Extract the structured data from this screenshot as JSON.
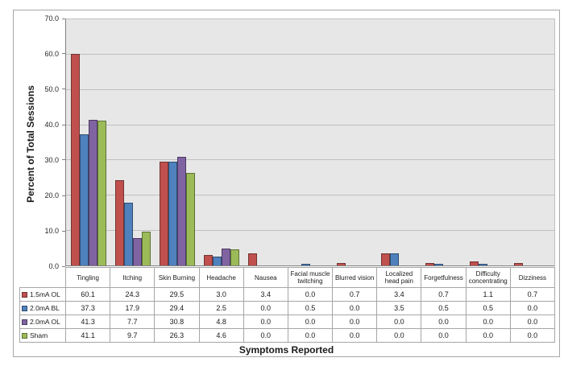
{
  "chart_data": {
    "type": "bar",
    "title": "",
    "xlabel": "Symptoms Reported",
    "ylabel": "Percent of Total Sessions",
    "ylim": [
      0,
      70
    ],
    "ytick_step": 10,
    "ytick_format_decimals": 1,
    "grid": true,
    "legend_position": "table-left",
    "categories": [
      "Tingling",
      "Itching",
      "Skin Burning",
      "Headache",
      "Nausea",
      "Facial muscle twitching",
      "Blurred vision",
      "Localized head pain",
      "Forgetfulness",
      "Difficulty concentrating",
      "Dizziness"
    ],
    "series": [
      {
        "name": "1.5mA OL",
        "color": "#C0504D",
        "border_color": "#703432",
        "values": [
          60.1,
          24.3,
          29.5,
          3.0,
          3.4,
          0.0,
          0.7,
          3.4,
          0.7,
          1.1,
          0.7
        ]
      },
      {
        "name": "2.0mA BL",
        "color": "#4F81BD",
        "border_color": "#2E4D70",
        "values": [
          37.3,
          17.9,
          29.4,
          2.5,
          0.0,
          0.5,
          0.0,
          3.5,
          0.5,
          0.5,
          0.0
        ]
      },
      {
        "name": "2.0mA OL",
        "color": "#8064A2",
        "border_color": "#4A3A61",
        "values": [
          41.3,
          7.7,
          30.8,
          4.8,
          0.0,
          0.0,
          0.0,
          0.0,
          0.0,
          0.0,
          0.0
        ]
      },
      {
        "name": "Sham",
        "color": "#9BBB59",
        "border_color": "#5E7233",
        "values": [
          41.1,
          9.7,
          26.3,
          4.6,
          0.0,
          0.0,
          0.0,
          0.0,
          0.0,
          0.0,
          0.0
        ]
      }
    ],
    "style_colors": {
      "plot_background": "#E7E7E7",
      "gridline": "#BFBFBF",
      "axis_line": "#808080",
      "table_border": "#A6A6A6",
      "frame_border": "#A6A6A6"
    }
  }
}
